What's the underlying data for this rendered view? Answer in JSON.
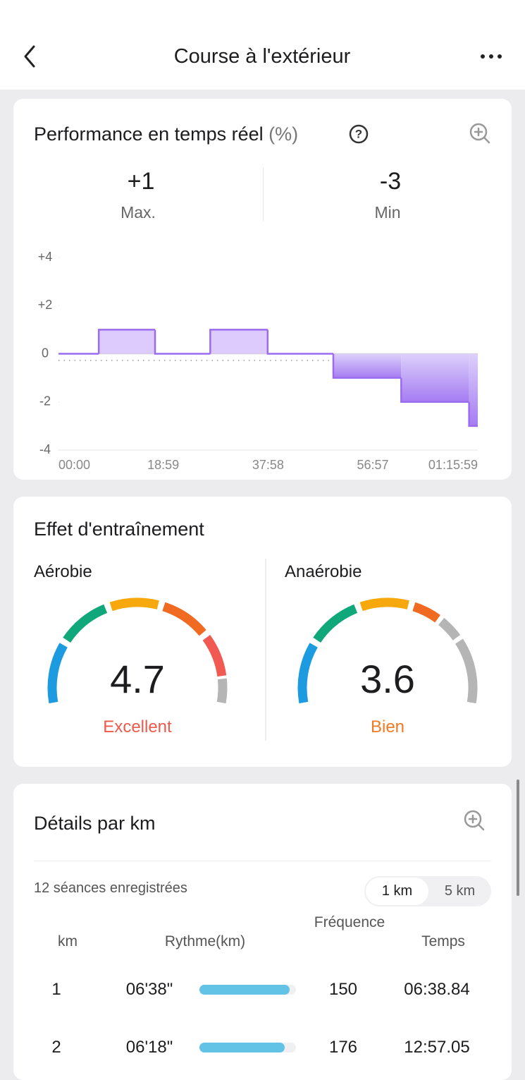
{
  "header": {
    "title": "Course à l'extérieur"
  },
  "performance": {
    "title": "Performance en temps réel",
    "unit": "(%)",
    "max_value": "+1",
    "max_label": "Max.",
    "min_value": "-3",
    "min_label": "Min",
    "chart_data": {
      "type": "step",
      "x": [
        0,
        7.3,
        17.5,
        27.5,
        37.9,
        49.8,
        62.1,
        74.4,
        75.98
      ],
      "values": [
        0,
        1,
        0,
        1,
        0,
        -1,
        -2,
        -3,
        -3
      ],
      "color": "#9b6cf0",
      "xlim": [
        0,
        75.98
      ],
      "xticks": [
        {
          "value": 0,
          "label": "00:00"
        },
        {
          "value": 18.98,
          "label": "18:59"
        },
        {
          "value": 37.97,
          "label": "37:58"
        },
        {
          "value": 56.95,
          "label": "56:57"
        },
        {
          "value": 75.98,
          "label": "01:15:59"
        }
      ],
      "ylim": [
        -4,
        4
      ],
      "yticks": [
        {
          "value": 4,
          "label": "+4"
        },
        {
          "value": 2,
          "label": "+2"
        },
        0,
        -2,
        -4
      ]
    }
  },
  "training": {
    "title": "Effet d'entraînement",
    "aerobic": {
      "label": "Aérobie",
      "value": 4.7,
      "rating": "Excellent"
    },
    "anaerobic": {
      "label": "Anaérobie",
      "value": 3.6,
      "rating": "Bien"
    }
  },
  "details": {
    "title": "Détails par km",
    "sessions": "12 séances enregistrées",
    "toggle": [
      "1 km",
      "5 km"
    ],
    "columns": [
      "km",
      "Rythme(km)",
      "Fréquence",
      "Temps"
    ],
    "rows": [
      [
        1,
        "06'38\"",
        150,
        "06:38.84"
      ],
      [
        2,
        "06'18\"",
        176,
        "12:57.05"
      ]
    ]
  }
}
